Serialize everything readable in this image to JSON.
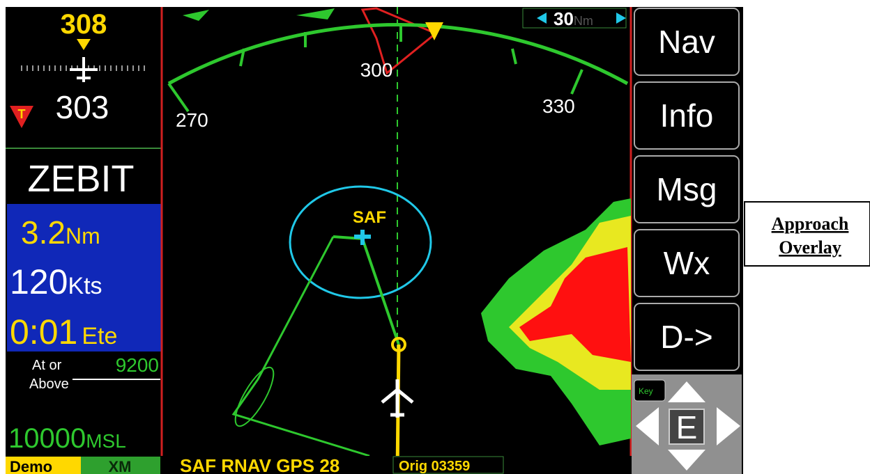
{
  "heading": {
    "bug": "308",
    "current": "303",
    "mode": "T"
  },
  "waypoint": "ZEBIT",
  "distance": {
    "value": "3.2",
    "unit": "Nm"
  },
  "speed": {
    "value": "120",
    "unit": "Kts"
  },
  "ete": {
    "value": "0:01",
    "unit": "Ete"
  },
  "altitude_constraint": {
    "line1": "At or",
    "line2": "Above",
    "value": "9200"
  },
  "altitude": {
    "value": "10000",
    "unit": "MSL"
  },
  "status_bar": {
    "mode": "Demo",
    "xm": "XM",
    "procedure": "SAF RNAV GPS 28",
    "origin": "Orig 03359"
  },
  "map": {
    "range": {
      "value": "30",
      "unit": "Nm"
    },
    "compass_labels": [
      "270",
      "300",
      "330"
    ],
    "waypoint": "SAF"
  },
  "buttons": [
    "Nav",
    "Info",
    "Msg",
    "Wx",
    "D->"
  ],
  "key": "Key",
  "joystick": "E",
  "annotation": {
    "lines": [
      "Approach",
      "Overlay"
    ]
  }
}
